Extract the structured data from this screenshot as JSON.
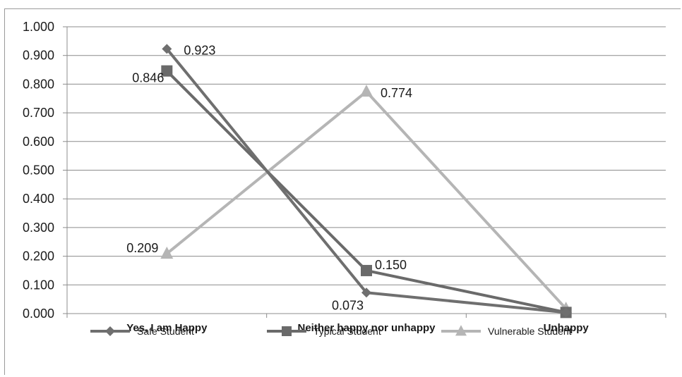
{
  "chart_data": {
    "type": "line",
    "categories": [
      "Yes, I am Happy",
      "Neither happy nor unhappy",
      "Unhappy"
    ],
    "ylim": [
      0,
      1
    ],
    "yticks": [
      "0.000",
      "0.100",
      "0.200",
      "0.300",
      "0.400",
      "0.500",
      "0.600",
      "0.700",
      "0.800",
      "0.900",
      "1.000"
    ],
    "grid": true,
    "legend_position": "bottom",
    "series": [
      {
        "name": "Safe Student",
        "marker": "diamond",
        "color": "#6f6f6f",
        "values": [
          0.923,
          0.073,
          0.004
        ],
        "labels": [
          "0.923",
          "0.073",
          ""
        ]
      },
      {
        "name": "Typical Student",
        "marker": "square",
        "color": "#6a6a6a",
        "values": [
          0.846,
          0.15,
          0.004
        ],
        "labels": [
          "0.846",
          "0.150",
          ""
        ]
      },
      {
        "name": "Vulnerable Student",
        "marker": "triangle",
        "color": "#b5b5b5",
        "values": [
          0.209,
          0.774,
          0.017
        ],
        "labels": [
          "0.209",
          "0.774",
          ""
        ]
      }
    ]
  }
}
